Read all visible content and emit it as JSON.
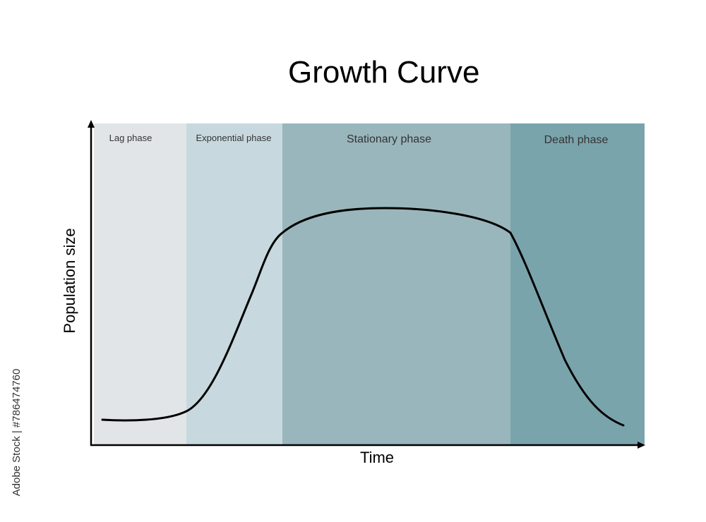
{
  "title": "Growth Curve",
  "x_axis_label": "Time",
  "y_axis_label": "Population size",
  "phases": [
    {
      "label": "Lag phase",
      "color": "#e1e5e7"
    },
    {
      "label": "Exponential phase",
      "color": "#c7d9de"
    },
    {
      "label": "Stationary phase",
      "color": "#99b6bc"
    },
    {
      "label": "Death phase",
      "color": "#7aa4ac"
    }
  ],
  "curve_color": "#000000",
  "side_watermark": "Adobe Stock | #786474760"
}
